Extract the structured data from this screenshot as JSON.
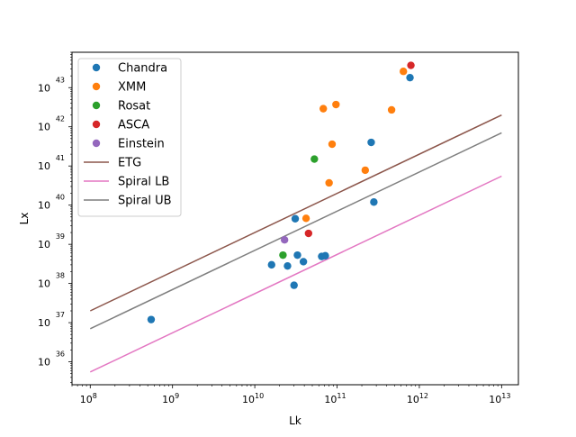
{
  "chart_data": {
    "type": "scatter",
    "xlabel": "Lk",
    "ylabel": "Lx",
    "xscale": "log",
    "yscale": "log",
    "xlim": [
      60000000.0,
      16000000000000.0
    ],
    "ylim": [
      2.6e+35,
      8e+43
    ],
    "grid": false,
    "legend_position": "top-left",
    "x_ticks": [
      {
        "value": 100000000.0,
        "base": "10",
        "exp": "8"
      },
      {
        "value": 1000000000.0,
        "base": "10",
        "exp": "9"
      },
      {
        "value": 10000000000.0,
        "base": "10",
        "exp": "10"
      },
      {
        "value": 100000000000.0,
        "base": "10",
        "exp": "11"
      },
      {
        "value": 1000000000000.0,
        "base": "10",
        "exp": "12"
      },
      {
        "value": 10000000000000.0,
        "base": "10",
        "exp": "13"
      }
    ],
    "y_ticks": [
      {
        "value": 1e+36,
        "base": "10",
        "exp": "36"
      },
      {
        "value": 1e+37,
        "base": "10",
        "exp": "37"
      },
      {
        "value": 1e+38,
        "base": "10",
        "exp": "38"
      },
      {
        "value": 1e+39,
        "base": "10",
        "exp": "39"
      },
      {
        "value": 1e+40,
        "base": "10",
        "exp": "40"
      },
      {
        "value": 1e+41,
        "base": "10",
        "exp": "41"
      },
      {
        "value": 1e+42,
        "base": "10",
        "exp": "42"
      },
      {
        "value": 1e+43,
        "base": "10",
        "exp": "43"
      }
    ],
    "series": [
      {
        "name": "Chandra",
        "kind": "points",
        "color": "#1f77b4",
        "x": [
          550000000.0,
          16000000000.0,
          25000000000.0,
          30000000000.0,
          31000000000.0,
          33000000000.0,
          39000000000.0,
          65000000000.0,
          72000000000.0,
          260000000000.0,
          280000000000.0,
          770000000000.0
        ],
        "y": [
          1.2e+37,
          3e+38,
          2.8e+38,
          9e+37,
          4.5e+39,
          5.3e+38,
          3.6e+38,
          4.9e+38,
          5.1e+38,
          4e+41,
          1.2e+40,
          1.8e+43
        ]
      },
      {
        "name": "XMM",
        "kind": "points",
        "color": "#ff7f0e",
        "x": [
          42000000000.0,
          68000000000.0,
          80000000000.0,
          87000000000.0,
          97000000000.0,
          220000000000.0,
          460000000000.0,
          640000000000.0
        ],
        "y": [
          4.6e+39,
          2.9e+42,
          3.7e+40,
          3.6e+41,
          3.7e+42,
          7.8e+40,
          2.7e+42,
          2.6e+43
        ]
      },
      {
        "name": "Rosat",
        "kind": "points",
        "color": "#2ca02c",
        "x": [
          22000000000.0,
          53000000000.0
        ],
        "y": [
          5.3e+38,
          1.5e+41
        ]
      },
      {
        "name": "ASCA",
        "kind": "points",
        "color": "#d62728",
        "x": [
          45000000000.0,
          790000000000.0
        ],
        "y": [
          1.9e+39,
          3.7e+43
        ]
      },
      {
        "name": "Einstein",
        "kind": "points",
        "color": "#9467bd",
        "x": [
          23000000000.0
        ],
        "y": [
          1.3e+39
        ]
      },
      {
        "name": "ETG",
        "kind": "line",
        "color": "#8c564b",
        "x": [
          100000000.0,
          10000000000000.0
        ],
        "y": [
          2e+37,
          2e+42
        ]
      },
      {
        "name": "Spiral LB",
        "kind": "line",
        "color": "#e377c2",
        "x": [
          100000000.0,
          10000000000000.0
        ],
        "y": [
          5.5e+35,
          5.5e+40
        ]
      },
      {
        "name": "Spiral UB",
        "kind": "line",
        "color": "#7f7f7f",
        "x": [
          100000000.0,
          10000000000000.0
        ],
        "y": [
          7e+36,
          7e+41
        ]
      }
    ]
  }
}
